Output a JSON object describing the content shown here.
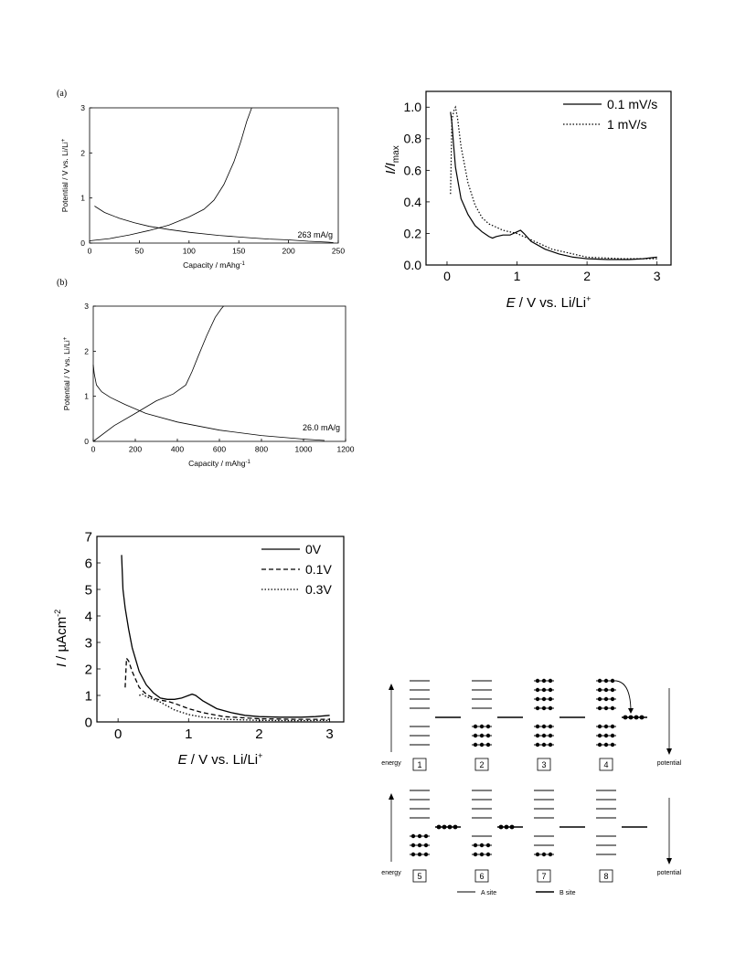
{
  "chart_data": [
    {
      "id": "a",
      "type": "line",
      "panel_label": "(a)",
      "xlabel": "Capacity / mAhg",
      "xlabel_sup": "-1",
      "ylabel": "Potential / V vs. Li/Li",
      "ylabel_sup": "+",
      "xlim": [
        0,
        250
      ],
      "ylim": [
        0,
        3
      ],
      "xticks": [
        0,
        50,
        100,
        150,
        200,
        250
      ],
      "yticks": [
        0,
        1,
        2,
        3
      ],
      "annotation": "263 mA/g",
      "series": [
        {
          "x": [
            5,
            15,
            30,
            45,
            60,
            80,
            100,
            130,
            160,
            180,
            200,
            220,
            240,
            245
          ],
          "y": [
            0.82,
            0.68,
            0.55,
            0.45,
            0.37,
            0.3,
            0.24,
            0.17,
            0.12,
            0.09,
            0.07,
            0.04,
            0.02,
            0.01
          ]
        },
        {
          "x": [
            0,
            20,
            40,
            60,
            80,
            100,
            115,
            125,
            135,
            145,
            152,
            158,
            163
          ],
          "y": [
            0.05,
            0.1,
            0.18,
            0.28,
            0.4,
            0.58,
            0.75,
            0.95,
            1.3,
            1.8,
            2.25,
            2.7,
            3.0
          ]
        }
      ]
    },
    {
      "id": "b",
      "type": "line",
      "panel_label": "(b)",
      "xlabel": "Capacity / mAhg",
      "xlabel_sup": "-1",
      "ylabel": "Potential / V vs. Li/Li",
      "ylabel_sup": "+",
      "xlim": [
        0,
        1200
      ],
      "ylim": [
        0,
        3
      ],
      "xticks": [
        0,
        200,
        400,
        600,
        800,
        1000,
        1200
      ],
      "yticks": [
        0,
        1,
        2,
        3
      ],
      "annotation": "26.0 mA/g",
      "series": [
        {
          "x": [
            0,
            5,
            15,
            40,
            80,
            150,
            250,
            400,
            600,
            800,
            1000,
            1100
          ],
          "y": [
            1.7,
            1.5,
            1.25,
            1.1,
            0.98,
            0.82,
            0.62,
            0.43,
            0.25,
            0.13,
            0.05,
            0.02
          ]
        },
        {
          "x": [
            0,
            100,
            200,
            300,
            380,
            440,
            470,
            500,
            540,
            580,
            610,
            620
          ],
          "y": [
            0.0,
            0.35,
            0.62,
            0.9,
            1.05,
            1.25,
            1.55,
            1.9,
            2.35,
            2.75,
            2.95,
            3.0
          ]
        }
      ]
    },
    {
      "id": "c",
      "type": "line",
      "xlabel_main": "E",
      "xlabel_rest": " / V vs. Li/Li",
      "xlabel_sup": "+",
      "ylabel_main": "I/I",
      "ylabel_sub": "max",
      "xlim": [
        -0.3,
        3.2
      ],
      "ylim": [
        0,
        1.1
      ],
      "xticks": [
        0,
        1,
        2,
        3
      ],
      "yticks": [
        0.0,
        0.2,
        0.4,
        0.6,
        0.8,
        1.0
      ],
      "ytick_labels": [
        "0.0",
        "0.2",
        "0.4",
        "0.6",
        "0.8",
        "1.0"
      ],
      "legend": "top-right",
      "series": [
        {
          "name": "0.1 mV/s",
          "style": "solid",
          "x": [
            0.05,
            0.07,
            0.09,
            0.12,
            0.2,
            0.3,
            0.4,
            0.5,
            0.6,
            0.65,
            0.7,
            0.8,
            0.9,
            1.0,
            1.05,
            1.1,
            1.2,
            1.4,
            1.6,
            1.8,
            2.0,
            2.3,
            2.6,
            2.8,
            3.0
          ],
          "y": [
            0.97,
            0.9,
            0.78,
            0.62,
            0.42,
            0.32,
            0.25,
            0.21,
            0.18,
            0.17,
            0.18,
            0.19,
            0.19,
            0.21,
            0.22,
            0.2,
            0.15,
            0.1,
            0.07,
            0.05,
            0.04,
            0.035,
            0.035,
            0.04,
            0.05
          ]
        },
        {
          "name": "1 mV/s",
          "style": "dotted",
          "x": [
            0.05,
            0.07,
            0.1,
            0.12,
            0.15,
            0.2,
            0.3,
            0.4,
            0.5,
            0.6,
            0.7,
            0.8,
            1.0,
            1.2,
            1.5,
            2.0,
            2.5,
            3.0
          ],
          "y": [
            0.45,
            0.92,
            0.98,
            1.0,
            0.93,
            0.75,
            0.52,
            0.38,
            0.3,
            0.26,
            0.24,
            0.22,
            0.2,
            0.16,
            0.1,
            0.05,
            0.04,
            0.04
          ]
        }
      ]
    },
    {
      "id": "d",
      "type": "line",
      "xlabel_main": "E",
      "xlabel_rest": " / V vs. Li/Li",
      "xlabel_sup": "+",
      "ylabel_main": "I",
      "ylabel_rest": " / µAcm",
      "ylabel_sup": "-2",
      "xlim": [
        -0.3,
        3.2
      ],
      "ylim": [
        0,
        7
      ],
      "xticks": [
        0,
        1,
        2,
        3
      ],
      "yticks": [
        0,
        1,
        2,
        3,
        4,
        5,
        6,
        7
      ],
      "legend": "top-right",
      "series": [
        {
          "name": "0V",
          "style": "solid",
          "x": [
            0.05,
            0.07,
            0.1,
            0.15,
            0.2,
            0.3,
            0.4,
            0.5,
            0.6,
            0.7,
            0.8,
            0.9,
            1.0,
            1.05,
            1.1,
            1.2,
            1.4,
            1.6,
            1.8,
            2.0,
            2.3,
            2.6,
            2.8,
            3.0
          ],
          "y": [
            6.3,
            5.0,
            4.3,
            3.5,
            2.8,
            1.9,
            1.4,
            1.1,
            0.9,
            0.85,
            0.85,
            0.9,
            1.0,
            1.05,
            1.0,
            0.8,
            0.5,
            0.35,
            0.25,
            0.2,
            0.18,
            0.18,
            0.2,
            0.25
          ]
        },
        {
          "name": "0.1V",
          "style": "dashed",
          "x": [
            0.1,
            0.12,
            0.15,
            0.2,
            0.3,
            0.4,
            0.5,
            0.6,
            0.7,
            0.8,
            1.0,
            1.2,
            1.5,
            2.0,
            2.5,
            3.0
          ],
          "y": [
            1.3,
            2.4,
            2.3,
            1.9,
            1.3,
            1.05,
            0.9,
            0.82,
            0.78,
            0.7,
            0.5,
            0.35,
            0.2,
            0.12,
            0.1,
            0.1
          ]
        },
        {
          "name": "0.3V",
          "style": "dotted",
          "x": [
            0.3,
            0.35,
            0.4,
            0.5,
            0.6,
            0.7,
            0.8,
            1.0,
            1.2,
            1.5,
            2.0,
            2.5,
            3.0
          ],
          "y": [
            1.0,
            1.05,
            0.95,
            0.85,
            0.75,
            0.6,
            0.45,
            0.28,
            0.18,
            0.1,
            0.06,
            0.05,
            0.06
          ]
        }
      ]
    }
  ],
  "scheme": {
    "energy_label": "energy",
    "potential_label": "potential",
    "legend": {
      "a_site": "A site",
      "b_site": "B site"
    },
    "panels": [
      {
        "number": "1",
        "filled": 0,
        "b_dots": 0
      },
      {
        "number": "2",
        "filled": 3,
        "b_dots": 0
      },
      {
        "number": "3",
        "filled": 7,
        "b_dots": 0
      },
      {
        "number": "4",
        "filled": 7,
        "b_dots": 4
      },
      {
        "number": "5",
        "filled": 3,
        "b_dots": 4
      },
      {
        "number": "6",
        "filled": 2,
        "b_dots": 3
      },
      {
        "number": "7",
        "filled": 1,
        "b_dots": 0
      },
      {
        "number": "8",
        "filled": 0,
        "b_dots": 0
      }
    ]
  }
}
